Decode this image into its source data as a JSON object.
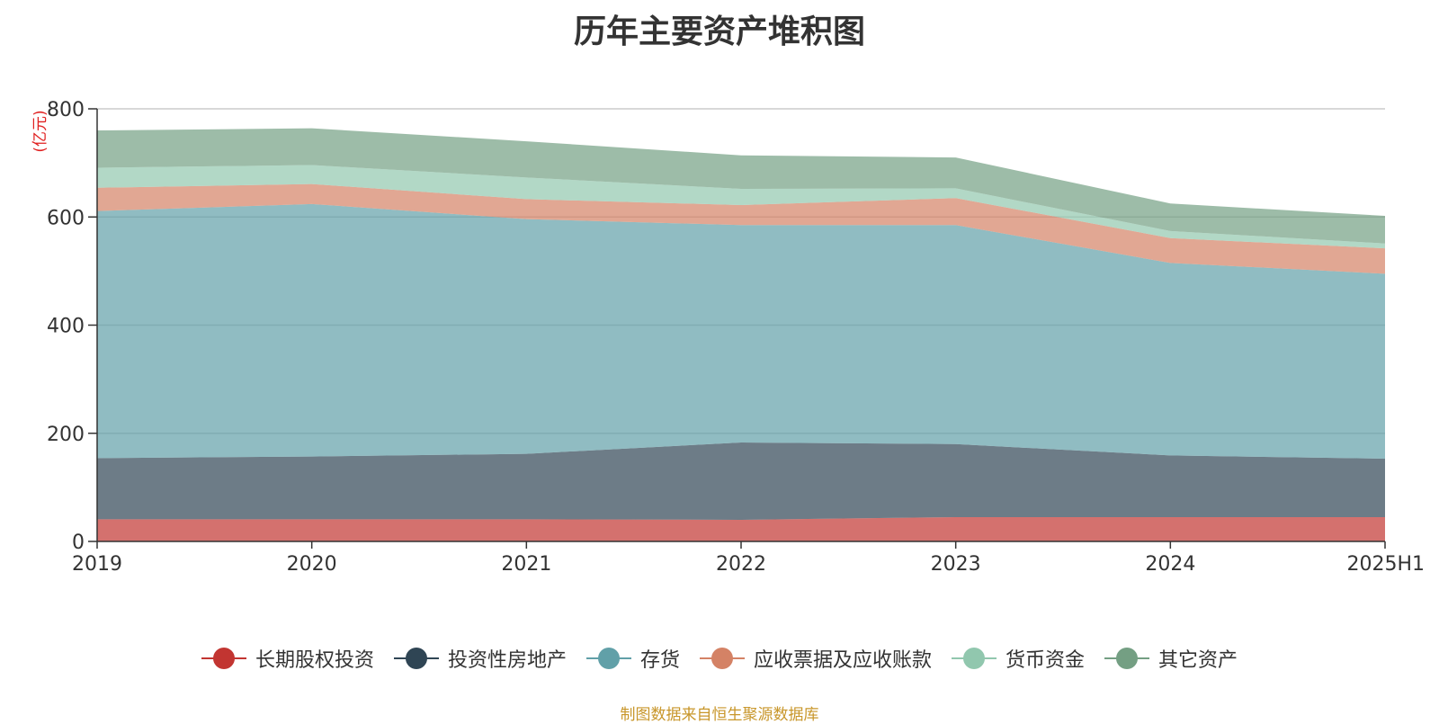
{
  "source_note": "制图数据来自恒生聚源数据库",
  "chart_data": {
    "type": "area",
    "stacked": true,
    "title": "历年主要资产堆积图",
    "ylabel": "(亿元)",
    "ylim": [
      0,
      800
    ],
    "yticks": [
      0,
      200,
      400,
      600,
      800
    ],
    "grid": true,
    "legend_position": "bottom",
    "categories": [
      "2019",
      "2020",
      "2021",
      "2022",
      "2023",
      "2024",
      "2025H1"
    ],
    "series": [
      {
        "name": "长期股权投资",
        "color": "#c23531",
        "values": [
          41,
          41,
          41,
          40,
          45,
          45,
          45
        ]
      },
      {
        "name": "投资性房地产",
        "color": "#2f4554",
        "values": [
          113,
          116,
          121,
          143,
          135,
          114,
          108
        ]
      },
      {
        "name": "存货",
        "color": "#61a0a8",
        "values": [
          457,
          467,
          434,
          402,
          405,
          356,
          342
        ]
      },
      {
        "name": "应收票据及应收账款",
        "color": "#d48265",
        "values": [
          43,
          37,
          37,
          37,
          50,
          46,
          47
        ]
      },
      {
        "name": "货币资金",
        "color": "#91c7ae",
        "values": [
          37,
          35,
          40,
          30,
          18,
          13,
          9
        ]
      },
      {
        "name": "其它资产",
        "color": "#749f83",
        "values": [
          69,
          68,
          67,
          62,
          57,
          51,
          51
        ]
      }
    ]
  }
}
